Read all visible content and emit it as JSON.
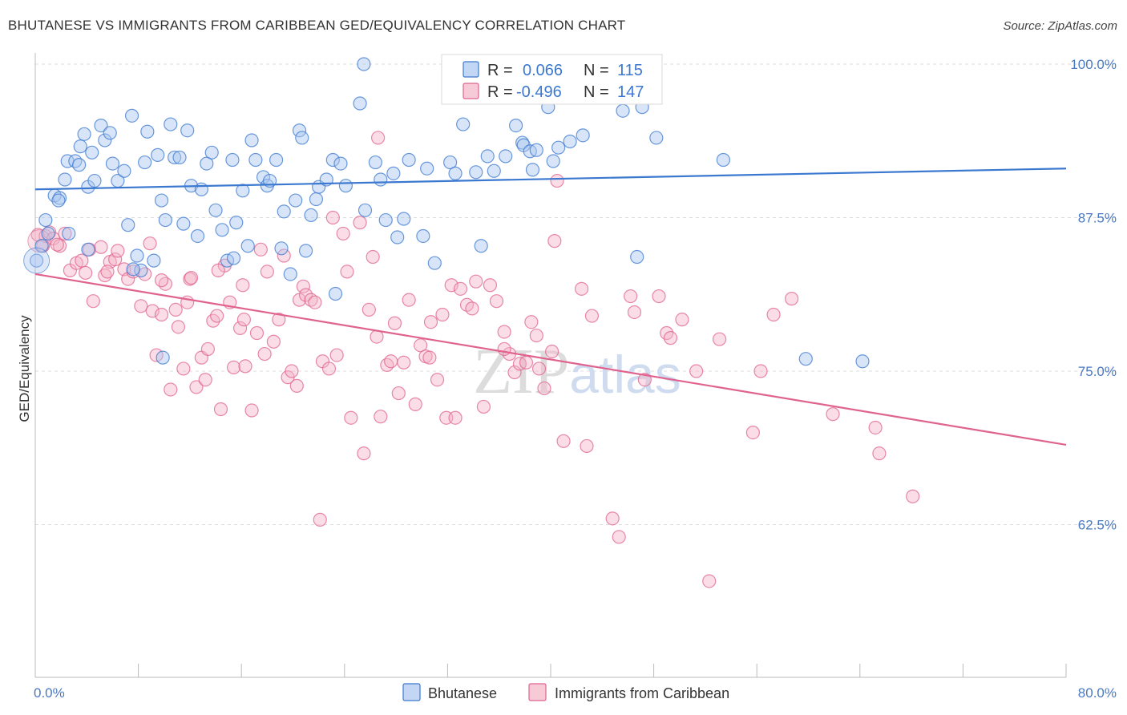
{
  "title": "BHUTANESE VS IMMIGRANTS FROM CARIBBEAN GED/EQUIVALENCY CORRELATION CHART",
  "source": "Source: ZipAtlas.com",
  "watermark": "ZIPatlas",
  "colors": {
    "blue": "#3b78d0",
    "blue_fill": "#a9c6ef",
    "pink": "#e0638f",
    "pink_fill": "#f3b3c8",
    "label_blue": "#3b78d0"
  },
  "legend": {
    "r_label": "R =",
    "n_label": "N =",
    "rows": [
      {
        "r": "0.066",
        "n": "115"
      },
      {
        "r": "-0.496",
        "n": "147"
      }
    ]
  },
  "chart_data": {
    "type": "scatter",
    "title": "BHUTANESE VS IMMIGRANTS FROM CARIBBEAN GED/EQUIVALENCY CORRELATION CHART",
    "xlabel": "",
    "ylabel": "GED/Equivalency",
    "xlim": [
      0,
      80
    ],
    "ylim": [
      50,
      102
    ],
    "x_tick_labels": [
      "0.0%",
      "80.0%"
    ],
    "y_ticks": [
      62.5,
      75.0,
      87.5,
      100.0
    ],
    "y_tick_labels": [
      "62.5%",
      "75.0%",
      "87.5%",
      "100.0%"
    ],
    "grid": true,
    "legend_position": "bottom",
    "series": [
      {
        "name": "Bhutanese",
        "trend": {
          "x": [
            0,
            80
          ],
          "y": [
            89.8,
            91.5
          ]
        },
        "points": [
          [
            0.1,
            84
          ],
          [
            0.8,
            87.3
          ],
          [
            1,
            86.2
          ],
          [
            1.5,
            89.3
          ],
          [
            1.9,
            89.1
          ],
          [
            2.3,
            90.6
          ],
          [
            2.5,
            92.1
          ],
          [
            3.1,
            92.1
          ],
          [
            3.4,
            91.8
          ],
          [
            3.5,
            93.3
          ],
          [
            3.8,
            94.3
          ],
          [
            4.1,
            90
          ],
          [
            4.4,
            92.8
          ],
          [
            4.6,
            90.5
          ],
          [
            5.1,
            95
          ],
          [
            5.4,
            93.8
          ],
          [
            5.8,
            94.4
          ],
          [
            6,
            91.9
          ],
          [
            6.4,
            90.5
          ],
          [
            6.9,
            91.3
          ],
          [
            7.2,
            86.9
          ],
          [
            7.5,
            95.8
          ],
          [
            7.9,
            84.4
          ],
          [
            8.2,
            83.2
          ],
          [
            8.5,
            92
          ],
          [
            8.7,
            94.5
          ],
          [
            9.2,
            84
          ],
          [
            9.5,
            92.6
          ],
          [
            9.8,
            88.9
          ],
          [
            10.1,
            87.3
          ],
          [
            10.5,
            95.1
          ],
          [
            10.8,
            92.4
          ],
          [
            11.2,
            92.4
          ],
          [
            11.5,
            87
          ],
          [
            11.8,
            94.6
          ],
          [
            12.1,
            90.1
          ],
          [
            12.6,
            86
          ],
          [
            12.9,
            89.8
          ],
          [
            13.3,
            91.9
          ],
          [
            13.7,
            92.8
          ],
          [
            14,
            88.1
          ],
          [
            14.5,
            86.5
          ],
          [
            14.9,
            84
          ],
          [
            15.3,
            92.2
          ],
          [
            15.6,
            87.1
          ],
          [
            16.1,
            89.7
          ],
          [
            16.5,
            85.2
          ],
          [
            16.8,
            93.8
          ],
          [
            17.1,
            92.2
          ],
          [
            17.7,
            90.8
          ],
          [
            18,
            90.1
          ],
          [
            18.2,
            90.5
          ],
          [
            18.7,
            92.2
          ],
          [
            19.1,
            85
          ],
          [
            19.3,
            88
          ],
          [
            19.8,
            82.9
          ],
          [
            20.2,
            88.9
          ],
          [
            20.5,
            94.6
          ],
          [
            20.7,
            94
          ],
          [
            21,
            84.8
          ],
          [
            21.4,
            87.7
          ],
          [
            21.8,
            89
          ],
          [
            22,
            90
          ],
          [
            22.6,
            90.6
          ],
          [
            23.1,
            92.2
          ],
          [
            23.3,
            81.3
          ],
          [
            23.7,
            91.9
          ],
          [
            24.1,
            90.1
          ],
          [
            25.2,
            96.8
          ],
          [
            25.6,
            88.1
          ],
          [
            26.4,
            92
          ],
          [
            26.8,
            90.6
          ],
          [
            27.2,
            87.3
          ],
          [
            28.1,
            85.9
          ],
          [
            28.6,
            87.4
          ],
          [
            29,
            92.2
          ],
          [
            30.1,
            86
          ],
          [
            30.4,
            91.5
          ],
          [
            31,
            83.8
          ],
          [
            32.2,
            92
          ],
          [
            32.6,
            91.1
          ],
          [
            33.2,
            95.1
          ],
          [
            34.2,
            91.2
          ],
          [
            34.6,
            85.2
          ],
          [
            35.1,
            92.5
          ],
          [
            35.6,
            91.3
          ],
          [
            36.5,
            92.5
          ],
          [
            37.3,
            95
          ],
          [
            37.8,
            93.6
          ],
          [
            37.9,
            93.4
          ],
          [
            38.4,
            92.9
          ],
          [
            38.6,
            91.4
          ],
          [
            38.9,
            93
          ],
          [
            39.8,
            96.5
          ],
          [
            40.6,
            93.2
          ],
          [
            40.2,
            92.1
          ],
          [
            41.5,
            93.7
          ],
          [
            42.5,
            94.2
          ],
          [
            45.6,
            96.2
          ],
          [
            46.3,
            97.3
          ],
          [
            47.1,
            96.5
          ],
          [
            46.7,
            84.3
          ],
          [
            48.2,
            94
          ],
          [
            53.4,
            92.2
          ],
          [
            59.8,
            76
          ],
          [
            64.2,
            75.8
          ],
          [
            25.5,
            100.0
          ],
          [
            43,
            100.0
          ],
          [
            15.4,
            84.2
          ],
          [
            7.6,
            83.3
          ],
          [
            2.6,
            86.2
          ],
          [
            1.8,
            88.9
          ],
          [
            4.1,
            84.9
          ],
          [
            0.5,
            85.2
          ],
          [
            9.9,
            76.1
          ],
          [
            27.8,
            91.1
          ]
        ]
      },
      {
        "name": "Immigrants from Caribbean",
        "trend": {
          "x": [
            0,
            80
          ],
          "y": [
            82.9,
            69.0
          ]
        },
        "points": [
          [
            0.2,
            86.1
          ],
          [
            0.6,
            85.2
          ],
          [
            0.8,
            86
          ],
          [
            1.1,
            86.3
          ],
          [
            1.4,
            85.8
          ],
          [
            1.9,
            85.2
          ],
          [
            2.3,
            86.2
          ],
          [
            2.7,
            83.2
          ],
          [
            3.2,
            83.8
          ],
          [
            3.6,
            84
          ],
          [
            3.9,
            83
          ],
          [
            4.2,
            84.9
          ],
          [
            4.5,
            80.7
          ],
          [
            5.1,
            85.1
          ],
          [
            5.4,
            82.8
          ],
          [
            5.8,
            83.9
          ],
          [
            6.2,
            84.1
          ],
          [
            6.4,
            84.8
          ],
          [
            6.9,
            83.3
          ],
          [
            7.2,
            82.5
          ],
          [
            7.6,
            83.1
          ],
          [
            8.2,
            80.3
          ],
          [
            8.5,
            82.9
          ],
          [
            8.9,
            85.4
          ],
          [
            9.1,
            79.9
          ],
          [
            9.4,
            76.3
          ],
          [
            9.8,
            79.6
          ],
          [
            10.1,
            82.1
          ],
          [
            10.5,
            73.5
          ],
          [
            10.9,
            80
          ],
          [
            11.1,
            78.6
          ],
          [
            11.5,
            75.2
          ],
          [
            11.8,
            80.6
          ],
          [
            12,
            82.5
          ],
          [
            12.5,
            73.7
          ],
          [
            12.9,
            76.1
          ],
          [
            13.2,
            74.3
          ],
          [
            13.4,
            76.8
          ],
          [
            13.8,
            79.1
          ],
          [
            14.1,
            79.5
          ],
          [
            14.4,
            71.9
          ],
          [
            14.7,
            83.6
          ],
          [
            15.1,
            80.6
          ],
          [
            15.4,
            75.3
          ],
          [
            15.9,
            78.5
          ],
          [
            16.1,
            82
          ],
          [
            16.3,
            75.4
          ],
          [
            16.8,
            71.8
          ],
          [
            17.2,
            78.1
          ],
          [
            17.5,
            84.9
          ],
          [
            17.8,
            76.4
          ],
          [
            18,
            83.1
          ],
          [
            18.5,
            77.4
          ],
          [
            18.9,
            79.2
          ],
          [
            19.3,
            84.4
          ],
          [
            19.6,
            74.5
          ],
          [
            19.9,
            75
          ],
          [
            20.3,
            73.8
          ],
          [
            20.5,
            80.8
          ],
          [
            20.8,
            81.9
          ],
          [
            21,
            81.2
          ],
          [
            21.4,
            80.8
          ],
          [
            21.7,
            80.6
          ],
          [
            22.1,
            62.9
          ],
          [
            22.3,
            75.8
          ],
          [
            22.8,
            75.2
          ],
          [
            23.1,
            87.5
          ],
          [
            23.4,
            76.3
          ],
          [
            23.9,
            86.2
          ],
          [
            24.2,
            83.1
          ],
          [
            24.5,
            71.2
          ],
          [
            25.2,
            87.1
          ],
          [
            25.5,
            68.3
          ],
          [
            25.9,
            80
          ],
          [
            26.2,
            84.3
          ],
          [
            26.5,
            77.8
          ],
          [
            26.8,
            71.3
          ],
          [
            27.3,
            75.5
          ],
          [
            27.6,
            75.8
          ],
          [
            27.9,
            78.9
          ],
          [
            28.2,
            73.2
          ],
          [
            28.6,
            75.7
          ],
          [
            29,
            80.8
          ],
          [
            29.5,
            72.3
          ],
          [
            29.9,
            77.1
          ],
          [
            30.3,
            76.2
          ],
          [
            30.7,
            79
          ],
          [
            31.2,
            74.3
          ],
          [
            31.6,
            79.6
          ],
          [
            31.9,
            71.2
          ],
          [
            32.3,
            82
          ],
          [
            32.6,
            71.2
          ],
          [
            33,
            81.7
          ],
          [
            33.5,
            80.4
          ],
          [
            33.9,
            80.1
          ],
          [
            34.2,
            82.3
          ],
          [
            34.8,
            72.1
          ],
          [
            35.3,
            82
          ],
          [
            35.8,
            80.7
          ],
          [
            36.4,
            78.2
          ],
          [
            36.8,
            76.4
          ],
          [
            37.2,
            74.9
          ],
          [
            37.6,
            75.6
          ],
          [
            38.1,
            75.7
          ],
          [
            38.5,
            79
          ],
          [
            39.1,
            75.2
          ],
          [
            39.5,
            73.6
          ],
          [
            40.1,
            76.6
          ],
          [
            40.3,
            85.6
          ],
          [
            40.5,
            90.5
          ],
          [
            41,
            69.3
          ],
          [
            42.4,
            81.7
          ],
          [
            42.8,
            68.9
          ],
          [
            43.2,
            79.5
          ],
          [
            44.8,
            63
          ],
          [
            45.3,
            61.5
          ],
          [
            46.2,
            81.1
          ],
          [
            46.5,
            79.8
          ],
          [
            47.3,
            74.3
          ],
          [
            48.4,
            81.1
          ],
          [
            49,
            78.1
          ],
          [
            49.3,
            77.7
          ],
          [
            50.2,
            79.2
          ],
          [
            51.3,
            75
          ],
          [
            52.3,
            57.9
          ],
          [
            53.1,
            77.6
          ],
          [
            55.7,
            70
          ],
          [
            56.3,
            75
          ],
          [
            57.3,
            79.6
          ],
          [
            58.7,
            80.9
          ],
          [
            61.9,
            71.5
          ],
          [
            65.2,
            70.4
          ],
          [
            65.5,
            68.3
          ],
          [
            68.1,
            64.8
          ],
          [
            12.1,
            82.6
          ],
          [
            26.6,
            94
          ],
          [
            38.9,
            77.9
          ],
          [
            36.4,
            76.8
          ],
          [
            30.6,
            76.1
          ],
          [
            14.2,
            83.2
          ],
          [
            16.2,
            79.2
          ],
          [
            9.8,
            82.4
          ],
          [
            1.7,
            85.3
          ],
          [
            5.6,
            83.1
          ]
        ]
      }
    ]
  },
  "bottom_legend": [
    "Bhutanese",
    "Immigrants from Caribbean"
  ]
}
